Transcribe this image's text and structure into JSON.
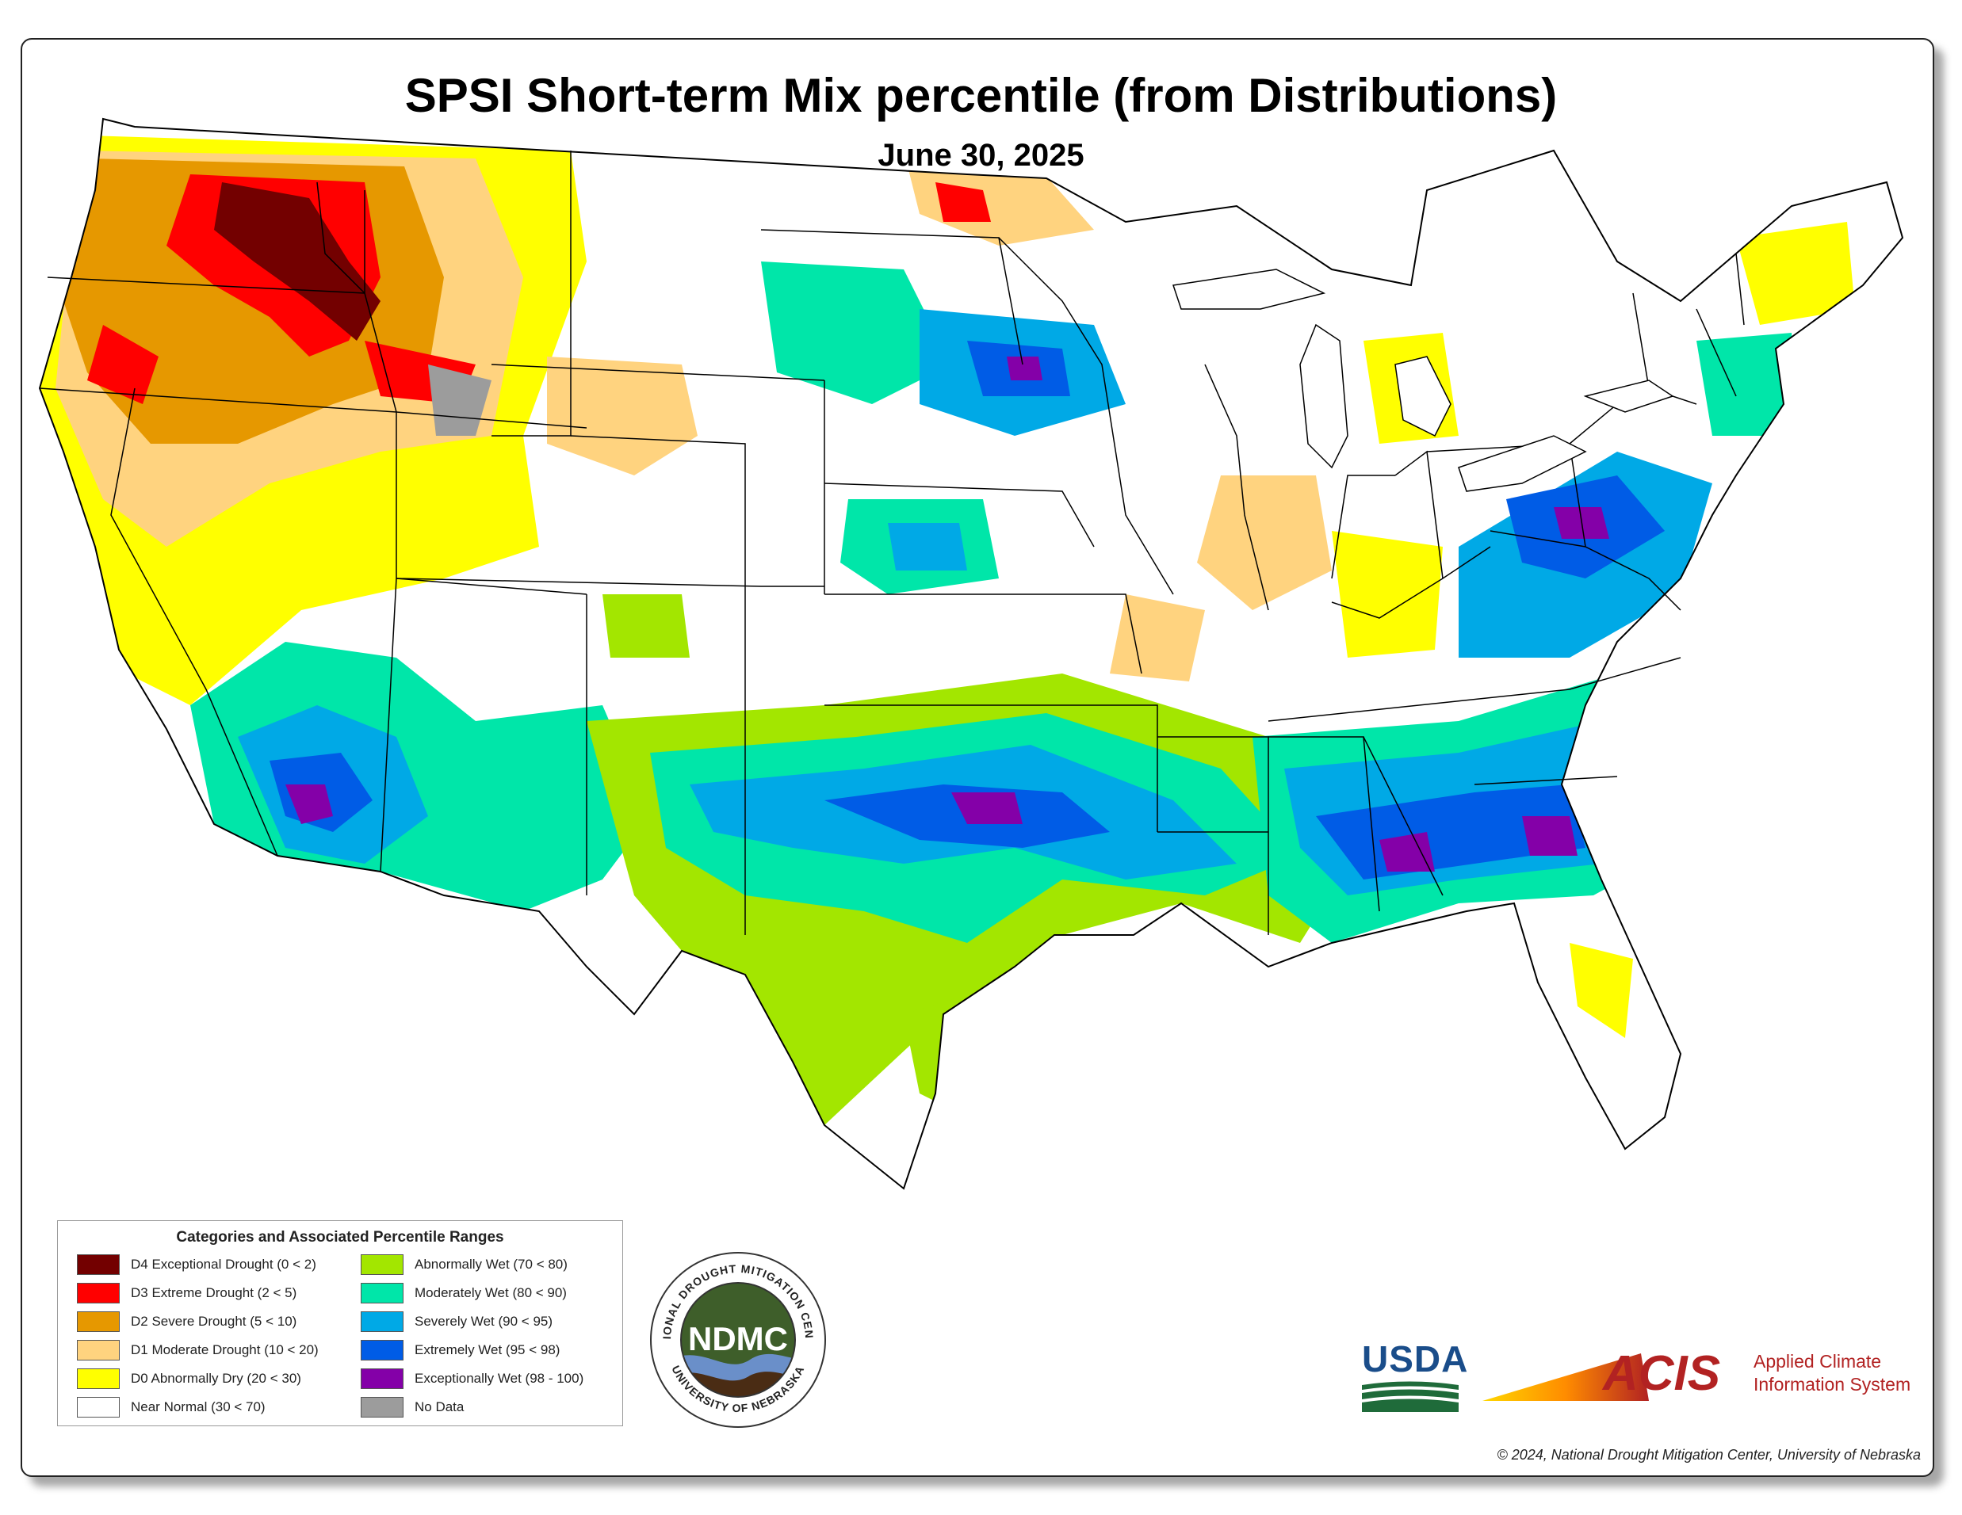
{
  "title": "SPSI Short-term Mix percentile (from Distributions)",
  "date": "June 30, 2025",
  "legend": {
    "title": "Categories and Associated Percentile Ranges",
    "items": [
      {
        "label": "D4 Exceptional Drought (0 < 2)",
        "color": "#730000"
      },
      {
        "label": "D3 Extreme Drought (2 < 5)",
        "color": "#ff0000"
      },
      {
        "label": "D2 Severe Drought (5 < 10)",
        "color": "#e69800"
      },
      {
        "label": "D1 Moderate Drought (10 < 20)",
        "color": "#ffd37f"
      },
      {
        "label": "D0 Abnormally Dry (20 < 30)",
        "color": "#ffff00"
      },
      {
        "label": "Near Normal (30 < 70)",
        "color": "#ffffff"
      },
      {
        "label": "Abnormally Wet (70 < 80)",
        "color": "#a3e600"
      },
      {
        "label": "Moderately Wet (80 < 90)",
        "color": "#00e6a9"
      },
      {
        "label": "Severely Wet (90 < 95)",
        "color": "#00a9e6"
      },
      {
        "label": "Extremely Wet (95 < 98)",
        "color": "#005ce6"
      },
      {
        "label": "Exceptionally Wet (98 - 100)",
        "color": "#8400a8"
      },
      {
        "label": "No Data",
        "color": "#9c9c9c"
      }
    ]
  },
  "logos": {
    "ndmc_text": "NDMC",
    "ndmc_ring_top": "NATIONAL DROUGHT MITIGATION CENTER",
    "ndmc_ring_bottom": "UNIVERSITY OF NEBRASKA",
    "usda_text": "USDA",
    "acis_word": "ACIS",
    "acis_line1": "Applied Climate",
    "acis_line2": "Information System"
  },
  "copyright": "© 2024, National Drought Mitigation Center, University of Nebraska"
}
